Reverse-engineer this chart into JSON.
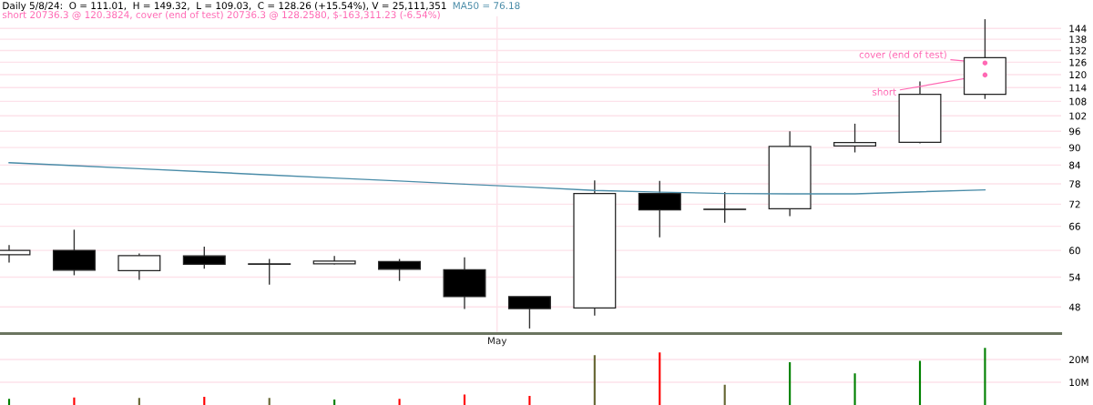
{
  "chart_data": [
    {
      "type": "candlestick",
      "title": "Daily 5/8/24:  O = 111.01,  H = 149.32,  L = 109.03,  C = 128.26 (+15.54%), V = 25,111,351",
      "subtitle": "short 20736.3 @ 120.3824, cover (end of test) 20736.3 @ 128.2580, $-163,311.23 (-6.54%)",
      "categories": [
        null,
        null,
        null,
        null,
        null,
        null,
        null,
        null,
        null,
        null,
        null,
        null,
        null,
        null,
        null,
        null
      ],
      "ohlc": [
        [
          59.0,
          61.3,
          57.2,
          60.0
        ],
        [
          60.0,
          65.1,
          54.4,
          55.5
        ],
        [
          55.4,
          59.3,
          53.4,
          58.8
        ],
        [
          58.7,
          60.9,
          55.8,
          56.8
        ],
        [
          56.9,
          58.0,
          52.4,
          56.8
        ],
        [
          56.9,
          58.7,
          56.8,
          57.5
        ],
        [
          57.4,
          58.0,
          53.2,
          55.7
        ],
        [
          55.6,
          58.4,
          47.6,
          50.0
        ],
        [
          50.0,
          50.0,
          44.1,
          47.7
        ],
        [
          47.8,
          79.1,
          46.4,
          75.1
        ],
        [
          75.1,
          78.9,
          63.2,
          70.4
        ],
        [
          70.6,
          75.5,
          66.9,
          70.5
        ],
        [
          70.7,
          96.0,
          68.7,
          90.4
        ],
        [
          90.6,
          98.9,
          88.3,
          91.8
        ],
        [
          91.9,
          116.8,
          91.5,
          111.0
        ],
        [
          111.01,
          149.32,
          109.03,
          128.26
        ]
      ],
      "series": [
        {
          "name": "MA50 = 76.18",
          "type": "line",
          "color": "#4a8ca8",
          "values": [
            84.8,
            83.8,
            82.8,
            81.8,
            80.8,
            79.8,
            78.9,
            77.9,
            77.0,
            76.0,
            75.5,
            75.1,
            75.0,
            75.0,
            75.6,
            76.18
          ]
        }
      ],
      "annotations": [
        "May",
        "short",
        "cover (end of test)"
      ],
      "log": "y",
      "ylim": [
        43.3,
        151
      ],
      "yticks": [
        48,
        54,
        60,
        66,
        72,
        78,
        84,
        90,
        96,
        102,
        108,
        114,
        120,
        126,
        132,
        138,
        144
      ],
      "grid": "y"
    },
    {
      "type": "bar",
      "categories": [
        null,
        null,
        null,
        null,
        null,
        null,
        null,
        null,
        null,
        null,
        null,
        null,
        null,
        null,
        null,
        null
      ],
      "values": [
        2700000,
        3300000,
        3100000,
        3600000,
        3100000,
        2400000,
        2700000,
        4600000,
        4000000,
        21900000,
        23100000,
        8900000,
        18800000,
        13900000,
        19400000,
        25100000
      ],
      "colors": [
        "#008000",
        "#ff0000",
        "#666633",
        "#ff0000",
        "#666633",
        "#008000",
        "#ff0000",
        "#ff0000",
        "#ff0000",
        "#666633",
        "#ff0000",
        "#666633",
        "#008000",
        "#008000",
        "#008000",
        "#008000"
      ],
      "ylim": [
        0,
        31200000
      ],
      "yticks": [
        {
          "value": 10000000,
          "label": "10M"
        },
        {
          "value": 20000000,
          "label": "20M"
        }
      ],
      "grid": "y",
      "tick_labels": "y"
    }
  ]
}
